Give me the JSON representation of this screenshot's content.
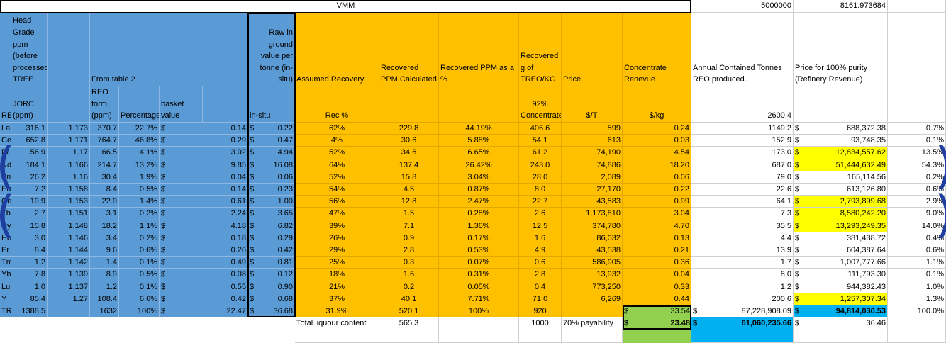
{
  "title_vmm": "VMM",
  "top_right": {
    "tonnage": "5000000",
    "price_factor": "8161.973684"
  },
  "headers": {
    "col_b": "Head Grade ppm (before processed) TREE",
    "col_d": "From table 2",
    "col_h": "Raw in ground value per tonne (in-situ)",
    "col_i": "Assumed Recovery",
    "col_j": "Recovered PPM Calculated",
    "col_k": "Recovered PPM as a %",
    "col_l": "Recovered g of TREO/KG",
    "col_m": "Price",
    "col_n": "Concentrate Renevue",
    "col_o": "Annual Contained Tonnes REO produced.",
    "col_p": "Price for 100% purity (Refinery Revenue)"
  },
  "subheaders": {
    "a": "REOxide",
    "b": "JORC (ppm)",
    "d": "REO form (ppm)",
    "e": "Percentage",
    "f": "basket value",
    "h": "in-situ",
    "i": "Rec %",
    "l": "92% Concentrate",
    "m": "$/T",
    "n": "$/kg",
    "o": "2600.4"
  },
  "rows": [
    {
      "el": "La",
      "jorc": "316.1",
      "factor": "1.173",
      "reo": "370.7",
      "pct": "22.7%",
      "basket": "0.14",
      "insitu": "0.22",
      "rec": "62%",
      "ppm": "229.8",
      "ppm_pct": "44.19%",
      "g": "406.6",
      "price": "599",
      "conc": "0.24",
      "tonnes": "1149.2",
      "refinery": "688,372.38",
      "share": "0.7%",
      "hl": false
    },
    {
      "el": "Ce",
      "jorc": "652.8",
      "factor": "1.171",
      "reo": "764.7",
      "pct": "46.8%",
      "basket": "0.29",
      "insitu": "0.47",
      "rec": "4%",
      "ppm": "30.6",
      "ppm_pct": "5.88%",
      "g": "54.1",
      "price": "613",
      "conc": "0.03",
      "tonnes": "152.9",
      "refinery": "93,748.35",
      "share": "0.1%",
      "hl": false
    },
    {
      "el": "Pr",
      "jorc": "56.9",
      "factor": "1.17",
      "reo": "66.5",
      "pct": "4.1%",
      "basket": "3.02",
      "insitu": "4.94",
      "rec": "52%",
      "ppm": "34.6",
      "ppm_pct": "6.65%",
      "g": "61.2",
      "price": "74,190",
      "conc": "4.54",
      "tonnes": "173.0",
      "refinery": "12,834,557.62",
      "share": "13.5%",
      "hl": true
    },
    {
      "el": "Nd",
      "jorc": "184.1",
      "factor": "1.166",
      "reo": "214.7",
      "pct": "13.2%",
      "basket": "9.85",
      "insitu": "16.08",
      "rec": "64%",
      "ppm": "137.4",
      "ppm_pct": "26.42%",
      "g": "243.0",
      "price": "74,886",
      "conc": "18.20",
      "tonnes": "687.0",
      "refinery": "51,444,632.49",
      "share": "54.3%",
      "hl": true
    },
    {
      "el": "Sm",
      "jorc": "26.2",
      "factor": "1.16",
      "reo": "30.4",
      "pct": "1.9%",
      "basket": "0.04",
      "insitu": "0.06",
      "rec": "52%",
      "ppm": "15.8",
      "ppm_pct": "3.04%",
      "g": "28.0",
      "price": "2,089",
      "conc": "0.06",
      "tonnes": "79.0",
      "refinery": "165,114.56",
      "share": "0.2%",
      "hl": false
    },
    {
      "el": "Eu",
      "jorc": "7.2",
      "factor": "1.158",
      "reo": "8.4",
      "pct": "0.5%",
      "basket": "0.14",
      "insitu": "0.23",
      "rec": "54%",
      "ppm": "4.5",
      "ppm_pct": "0.87%",
      "g": "8.0",
      "price": "27,170",
      "conc": "0.22",
      "tonnes": "22.6",
      "refinery": "613,126.80",
      "share": "0.6%",
      "hl": false
    },
    {
      "el": "Gd",
      "jorc": "19.9",
      "factor": "1.153",
      "reo": "22.9",
      "pct": "1.4%",
      "basket": "0.61",
      "insitu": "1.00",
      "rec": "56%",
      "ppm": "12.8",
      "ppm_pct": "2.47%",
      "g": "22.7",
      "price": "43,583",
      "conc": "0.99",
      "tonnes": "64.1",
      "refinery": "2,793,899.68",
      "share": "2.9%",
      "hl": true
    },
    {
      "el": "Tb",
      "jorc": "2.7",
      "factor": "1.151",
      "reo": "3.1",
      "pct": "0.2%",
      "basket": "2.24",
      "insitu": "3.65",
      "rec": "47%",
      "ppm": "1.5",
      "ppm_pct": "0.28%",
      "g": "2.6",
      "price": "1,173,810",
      "conc": "3.04",
      "tonnes": "7.3",
      "refinery": "8,580,242.20",
      "share": "9.0%",
      "hl": true
    },
    {
      "el": "Dy",
      "jorc": "15.8",
      "factor": "1.148",
      "reo": "18.2",
      "pct": "1.1%",
      "basket": "4.18",
      "insitu": "6.82",
      "rec": "39%",
      "ppm": "7.1",
      "ppm_pct": "1.36%",
      "g": "12.5",
      "price": "374,780",
      "conc": "4.70",
      "tonnes": "35.5",
      "refinery": "13,293,249.35",
      "share": "14.0%",
      "hl": true
    },
    {
      "el": "Ho",
      "jorc": "3.0",
      "factor": "1.146",
      "reo": "3.4",
      "pct": "0.2%",
      "basket": "0.18",
      "insitu": "0.29",
      "rec": "26%",
      "ppm": "0.9",
      "ppm_pct": "0.17%",
      "g": "1.6",
      "price": "86,032",
      "conc": "0.13",
      "tonnes": "4.4",
      "refinery": "381,438.72",
      "share": "0.4%",
      "hl": false
    },
    {
      "el": "Er",
      "jorc": "8.4",
      "factor": "1.144",
      "reo": "9.6",
      "pct": "0.6%",
      "basket": "0.26",
      "insitu": "0.42",
      "rec": "29%",
      "ppm": "2.8",
      "ppm_pct": "0.53%",
      "g": "4.9",
      "price": "43,538",
      "conc": "0.21",
      "tonnes": "13.9",
      "refinery": "604,387.64",
      "share": "0.6%",
      "hl": false
    },
    {
      "el": "Tm",
      "jorc": "1.2",
      "factor": "1.142",
      "reo": "1.4",
      "pct": "0.1%",
      "basket": "0.49",
      "insitu": "0.81",
      "rec": "25%",
      "ppm": "0.3",
      "ppm_pct": "0.07%",
      "g": "0.6",
      "price": "586,905",
      "conc": "0.36",
      "tonnes": "1.7",
      "refinery": "1,007,777.66",
      "share": "1.1%",
      "hl": false
    },
    {
      "el": "Yb",
      "jorc": "7.8",
      "factor": "1.139",
      "reo": "8.9",
      "pct": "0.5%",
      "basket": "0.08",
      "insitu": "0.12",
      "rec": "18%",
      "ppm": "1.6",
      "ppm_pct": "0.31%",
      "g": "2.8",
      "price": "13,932",
      "conc": "0.04",
      "tonnes": "8.0",
      "refinery": "111,793.30",
      "share": "0.1%",
      "hl": false
    },
    {
      "el": "Lu",
      "jorc": "1.0",
      "factor": "1.137",
      "reo": "1.2",
      "pct": "0.1%",
      "basket": "0.55",
      "insitu": "0.90",
      "rec": "21%",
      "ppm": "0.2",
      "ppm_pct": "0.05%",
      "g": "0.4",
      "price": "773,250",
      "conc": "0.33",
      "tonnes": "1.2",
      "refinery": "944,382.43",
      "share": "1.0%",
      "hl": false
    },
    {
      "el": "Y",
      "jorc": "85.4",
      "factor": "1.27",
      "reo": "108.4",
      "pct": "6.6%",
      "basket": "0.42",
      "insitu": "0.68",
      "rec": "37%",
      "ppm": "40.1",
      "ppm_pct": "7.71%",
      "g": "71.0",
      "price": "6,269",
      "conc": "0.44",
      "tonnes": "200.6",
      "refinery": "1,257,307.34",
      "share": "1.3%",
      "hl": true
    }
  ],
  "tree_row": {
    "el": "TREE",
    "jorc": "1388.5",
    "reo": "1632",
    "pct": "100%",
    "basket": "22.47",
    "insitu": "36.68",
    "rec": "31.9%",
    "ppm": "520.1",
    "ppm_pct": "100%",
    "g": "920",
    "conc": "33.54",
    "tonnes_value": "87,228,908.09",
    "refinery": "94,814,030.53",
    "share": "100.0%"
  },
  "bottom_row": {
    "label": "Total liquour content",
    "ppm": "565.3",
    "g": "1000",
    "payability": "70% payability",
    "conc": "23.48",
    "tonnes_value": "61,060,235.66",
    "refinery": "36.46"
  },
  "currency": "$",
  "colors": {
    "blue": "#5b9bd5",
    "orange": "#ffc000",
    "yellow": "#ffff00",
    "green": "#92d050",
    "cyan": "#00b0f0"
  }
}
